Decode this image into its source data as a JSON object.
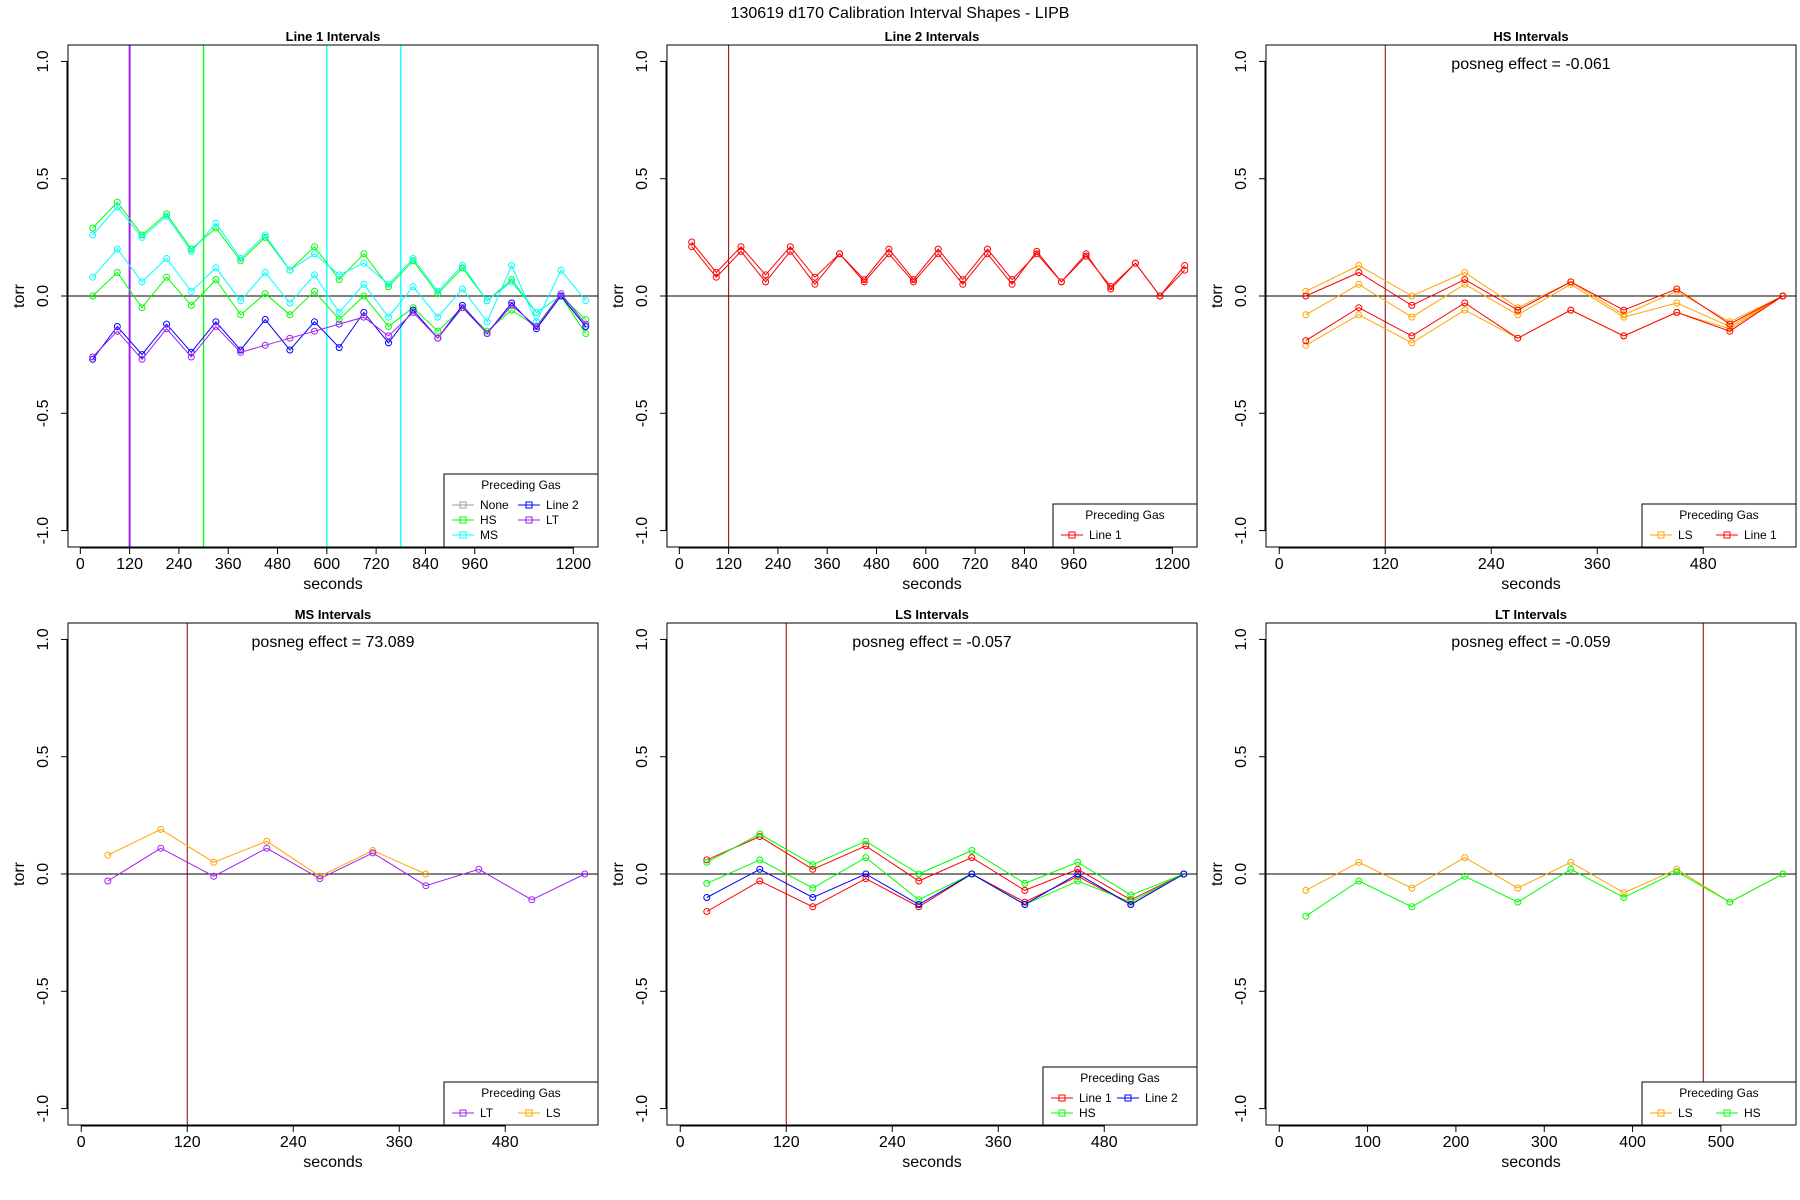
{
  "page_title": "130619   d170   Calibration Interval Shapes - LIPB",
  "colors": {
    "None": "#9e9e9e",
    "Line 1": "#ff0000",
    "Line 2": "#0000ff",
    "HS": "#00ff00",
    "MS": "#00ffff",
    "LS": "#ffa500",
    "LT": "#a020f0",
    "vline_dark": "#8b0000"
  },
  "chart_data": [
    {
      "type": "line",
      "title": "Line 1 Intervals",
      "xlabel": "seconds",
      "ylabel": "torr",
      "xlim": [
        -30,
        1260
      ],
      "ylim": [
        -1.07,
        1.07
      ],
      "xticks": [
        0,
        120,
        240,
        360,
        480,
        600,
        720,
        840,
        960,
        1200
      ],
      "yticks": [
        1.0,
        0.5,
        0.0,
        -0.5,
        -1.0
      ],
      "annotation": "",
      "vlines": [
        {
          "x": 120,
          "color": "LT",
          "width": 2
        },
        {
          "x": 300,
          "color": "HS",
          "width": 1.3
        },
        {
          "x": 600,
          "color": "MS",
          "width": 1.3
        },
        {
          "x": 780,
          "color": "MS",
          "width": 1.3
        }
      ],
      "legend": {
        "title": "Preceding Gas",
        "position": "bottom-right",
        "cols": 2,
        "entries": [
          "None",
          "HS",
          "MS",
          "Line 2",
          "LT"
        ]
      },
      "series": [
        {
          "name": "HS",
          "x": [
            30,
            90,
            150,
            210,
            270,
            330,
            390,
            450,
            510,
            570,
            630,
            690,
            750,
            810,
            870,
            930,
            990,
            1050,
            1110,
            1170,
            1230
          ],
          "y": [
            0.29,
            0.4,
            0.26,
            0.35,
            0.2,
            0.29,
            0.15,
            0.25,
            0.11,
            0.21,
            0.07,
            0.18,
            0.04,
            0.15,
            0.01,
            0.12,
            -0.02,
            0.07,
            -0.07,
            0.0,
            -0.1
          ]
        },
        {
          "name": "HS",
          "x": [
            30,
            90,
            150,
            210,
            270,
            330,
            390,
            450,
            510,
            570,
            630,
            690,
            750,
            810,
            870,
            930,
            990,
            1050,
            1110,
            1170,
            1230
          ],
          "y": [
            0.0,
            0.1,
            -0.05,
            0.08,
            -0.04,
            0.07,
            -0.08,
            0.01,
            -0.08,
            0.02,
            -0.1,
            0.0,
            -0.13,
            -0.05,
            -0.15,
            -0.05,
            -0.15,
            -0.06,
            -0.13,
            0.0,
            -0.16
          ]
        },
        {
          "name": "MS",
          "x": [
            30,
            90,
            150,
            210,
            270,
            330,
            390,
            450,
            510,
            570,
            630,
            690,
            750,
            810,
            870,
            930,
            990,
            1050,
            1110,
            1170,
            1230
          ],
          "y": [
            0.26,
            0.38,
            0.25,
            0.34,
            0.19,
            0.31,
            0.16,
            0.26,
            0.11,
            0.18,
            0.09,
            0.14,
            0.05,
            0.16,
            0.02,
            0.13,
            -0.02,
            0.06,
            -0.07,
            0.0,
            -0.13
          ]
        },
        {
          "name": "MS",
          "x": [
            30,
            90,
            150,
            210,
            270,
            330,
            390,
            450,
            510,
            570,
            630,
            690,
            750,
            810,
            870,
            930,
            990,
            1050,
            1110,
            1170,
            1230
          ],
          "y": [
            0.08,
            0.2,
            0.06,
            0.16,
            0.02,
            0.12,
            -0.02,
            0.1,
            -0.03,
            0.09,
            -0.07,
            0.05,
            -0.09,
            0.04,
            -0.09,
            0.03,
            -0.11,
            0.13,
            -0.11,
            0.11,
            -0.02
          ]
        },
        {
          "name": "Line 2",
          "x": [
            30,
            90,
            150,
            210,
            270,
            330,
            390,
            450,
            510,
            570,
            630,
            690,
            750,
            810,
            870,
            930,
            990,
            1050,
            1110,
            1170,
            1230
          ],
          "y": [
            -0.27,
            -0.13,
            -0.25,
            -0.12,
            -0.24,
            -0.11,
            -0.23,
            -0.1,
            -0.23,
            -0.11,
            -0.22,
            -0.07,
            -0.2,
            -0.06,
            -0.18,
            -0.04,
            -0.16,
            -0.03,
            -0.14,
            0.0,
            -0.13
          ]
        },
        {
          "name": "LT",
          "x": [
            30,
            90,
            150,
            210,
            270,
            330,
            390,
            450,
            510,
            570,
            630,
            690,
            750,
            810,
            870,
            930,
            990,
            1050,
            1110,
            1170,
            1230
          ],
          "y": [
            -0.26,
            -0.15,
            -0.27,
            -0.14,
            -0.26,
            -0.13,
            -0.24,
            -0.21,
            -0.18,
            -0.15,
            -0.12,
            -0.09,
            -0.17,
            -0.07,
            -0.18,
            -0.05,
            -0.16,
            -0.04,
            -0.13,
            0.01,
            -0.12
          ]
        }
      ]
    },
    {
      "type": "line",
      "title": "Line 2 Intervals",
      "xlabel": "seconds",
      "ylabel": "torr",
      "xlim": [
        -30,
        1260
      ],
      "ylim": [
        -1.07,
        1.07
      ],
      "xticks": [
        0,
        120,
        240,
        360,
        480,
        600,
        720,
        840,
        960,
        1200
      ],
      "yticks": [
        1.0,
        0.5,
        0.0,
        -0.5,
        -1.0
      ],
      "annotation": "",
      "vlines": [
        {
          "x": 120,
          "color": "vline_dark",
          "width": 1
        }
      ],
      "legend": {
        "title": "Preceding Gas",
        "position": "bottom-right",
        "cols": 1,
        "entries": [
          "Line 1"
        ]
      },
      "series": [
        {
          "name": "Line 1",
          "x": [
            30,
            90,
            150,
            210,
            270,
            330,
            390,
            450,
            510,
            570,
            630,
            690,
            750,
            810,
            870,
            930,
            990,
            1050,
            1110,
            1170,
            1230
          ],
          "y": [
            0.23,
            0.1,
            0.21,
            0.09,
            0.21,
            0.08,
            0.18,
            0.07,
            0.2,
            0.07,
            0.2,
            0.07,
            0.2,
            0.07,
            0.18,
            0.06,
            0.17,
            0.04,
            0.14,
            0.0,
            0.13
          ]
        },
        {
          "name": "Line 1",
          "x": [
            30,
            90,
            150,
            210,
            270,
            330,
            390,
            450,
            510,
            570,
            630,
            690,
            750,
            810,
            870,
            930,
            990,
            1050,
            1110,
            1170,
            1230
          ],
          "y": [
            0.21,
            0.08,
            0.19,
            0.06,
            0.19,
            0.05,
            0.18,
            0.06,
            0.18,
            0.06,
            0.18,
            0.05,
            0.18,
            0.05,
            0.19,
            0.06,
            0.18,
            0.03,
            0.14,
            0.0,
            0.11
          ]
        }
      ]
    },
    {
      "type": "line",
      "title": "HS Intervals",
      "xlabel": "seconds",
      "ylabel": "torr",
      "xlim": [
        -15,
        585
      ],
      "ylim": [
        -1.07,
        1.07
      ],
      "xticks": [
        0,
        120,
        240,
        360,
        480
      ],
      "yticks": [
        1.0,
        0.5,
        0.0,
        -0.5,
        -1.0
      ],
      "annotation": "posneg effect = -0.061",
      "vlines": [
        {
          "x": 120,
          "color": "vline_dark",
          "width": 1
        }
      ],
      "legend": {
        "title": "Preceding Gas",
        "position": "bottom-right",
        "cols": 2,
        "entries": [
          "LS",
          "Line 1"
        ]
      },
      "series": [
        {
          "name": "LS",
          "x": [
            30,
            90,
            150,
            210,
            270,
            330,
            390,
            450,
            510,
            570
          ],
          "y": [
            0.02,
            0.13,
            0.0,
            0.1,
            -0.05,
            0.06,
            -0.08,
            0.02,
            -0.11,
            0.0
          ]
        },
        {
          "name": "LS",
          "x": [
            30,
            90,
            150,
            210,
            270,
            330,
            390,
            450,
            510,
            570
          ],
          "y": [
            -0.08,
            0.05,
            -0.09,
            0.05,
            -0.08,
            0.05,
            -0.09,
            -0.03,
            -0.13,
            0.0
          ]
        },
        {
          "name": "LS",
          "x": [
            30,
            90,
            150,
            210,
            270,
            330,
            390,
            450,
            510,
            570
          ],
          "y": [
            -0.21,
            -0.08,
            -0.2,
            -0.06,
            -0.18,
            -0.06,
            -0.17,
            -0.07,
            -0.14,
            0.0
          ]
        },
        {
          "name": "Line 1",
          "x": [
            30,
            90,
            150,
            210,
            270,
            330,
            390,
            450,
            510,
            570
          ],
          "y": [
            0.0,
            0.1,
            -0.04,
            0.07,
            -0.06,
            0.06,
            -0.06,
            0.03,
            -0.12,
            0.0
          ]
        },
        {
          "name": "Line 1",
          "x": [
            30,
            90,
            150,
            210,
            270,
            330,
            390,
            450,
            510,
            570
          ],
          "y": [
            -0.19,
            -0.05,
            -0.17,
            -0.03,
            -0.18,
            -0.06,
            -0.17,
            -0.07,
            -0.15,
            0.0
          ]
        }
      ]
    },
    {
      "type": "line",
      "title": "MS Intervals",
      "xlabel": "seconds",
      "ylabel": "torr",
      "xlim": [
        -15,
        585
      ],
      "ylim": [
        -1.07,
        1.07
      ],
      "xticks": [
        0,
        120,
        240,
        360,
        480
      ],
      "yticks": [
        1.0,
        0.5,
        0.0,
        -0.5,
        -1.0
      ],
      "annotation": "posneg effect = 73.089",
      "vlines": [
        {
          "x": 120,
          "color": "vline_dark",
          "width": 1
        }
      ],
      "legend": {
        "title": "Preceding Gas",
        "position": "bottom-right",
        "cols": 2,
        "entries": [
          "LT",
          "LS"
        ]
      },
      "series": [
        {
          "name": "LS",
          "x": [
            30,
            90,
            150,
            210,
            270,
            330,
            390
          ],
          "y": [
            0.08,
            0.19,
            0.05,
            0.14,
            -0.01,
            0.1,
            0.0
          ]
        },
        {
          "name": "LT",
          "x": [
            30,
            90,
            150,
            210,
            270,
            330,
            390,
            450,
            510,
            570
          ],
          "y": [
            -0.03,
            0.11,
            -0.01,
            0.11,
            -0.02,
            0.09,
            -0.05,
            0.02,
            -0.11,
            0.0
          ]
        }
      ]
    },
    {
      "type": "line",
      "title": "LS Intervals",
      "xlabel": "seconds",
      "ylabel": "torr",
      "xlim": [
        -15,
        585
      ],
      "ylim": [
        -1.07,
        1.07
      ],
      "xticks": [
        0,
        120,
        240,
        360,
        480
      ],
      "yticks": [
        1.0,
        0.5,
        0.0,
        -0.5,
        -1.0
      ],
      "annotation": "posneg effect = -0.057",
      "vlines": [
        {
          "x": 120,
          "color": "vline_dark",
          "width": 1
        }
      ],
      "legend": {
        "title": "Preceding Gas",
        "position": "bottom-right",
        "cols": 2,
        "entries": [
          "Line 1",
          "HS",
          "Line 2"
        ]
      },
      "series": [
        {
          "name": "Line 1",
          "x": [
            30,
            90,
            150,
            210,
            270,
            330,
            390,
            450,
            510,
            570
          ],
          "y": [
            0.06,
            0.16,
            0.02,
            0.12,
            -0.03,
            0.07,
            -0.07,
            0.02,
            -0.11,
            0.0
          ]
        },
        {
          "name": "Line 1",
          "x": [
            30,
            90,
            150,
            210,
            270,
            330,
            390,
            450,
            510,
            570
          ],
          "y": [
            -0.16,
            -0.03,
            -0.14,
            -0.02,
            -0.14,
            0.0,
            -0.12,
            -0.01,
            -0.13,
            0.0
          ]
        },
        {
          "name": "HS",
          "x": [
            30,
            90,
            150,
            210,
            270,
            330,
            390,
            450,
            510,
            570
          ],
          "y": [
            0.05,
            0.17,
            0.04,
            0.14,
            0.0,
            0.1,
            -0.04,
            0.05,
            -0.09,
            0.0
          ]
        },
        {
          "name": "HS",
          "x": [
            30,
            90,
            150,
            210,
            270,
            330,
            390,
            450,
            510,
            570
          ],
          "y": [
            -0.04,
            0.06,
            -0.06,
            0.07,
            -0.11,
            0.0,
            -0.13,
            -0.03,
            -0.12,
            0.0
          ]
        },
        {
          "name": "Line 2",
          "x": [
            30,
            90,
            150,
            210,
            270,
            330,
            390,
            450,
            510,
            570
          ],
          "y": [
            -0.1,
            0.02,
            -0.1,
            0.0,
            -0.13,
            0.0,
            -0.13,
            0.0,
            -0.13,
            0.0
          ]
        }
      ]
    },
    {
      "type": "line",
      "title": "LT Intervals",
      "xlabel": "seconds",
      "ylabel": "torr",
      "xlim": [
        -15,
        585
      ],
      "ylim": [
        -1.07,
        1.07
      ],
      "xticks": [
        0,
        100,
        200,
        300,
        400,
        500
      ],
      "yticks": [
        1.0,
        0.5,
        0.0,
        -0.5,
        -1.0
      ],
      "annotation": "posneg effect = -0.059",
      "vlines": [
        {
          "x": 480,
          "color": "vline_dark",
          "width": 1
        }
      ],
      "legend": {
        "title": "Preceding Gas",
        "position": "bottom-right",
        "cols": 2,
        "entries": [
          "LS",
          "HS"
        ]
      },
      "series": [
        {
          "name": "LS",
          "x": [
            30,
            90,
            150,
            210,
            270,
            330,
            390,
            450,
            510,
            570
          ],
          "y": [
            -0.07,
            0.05,
            -0.06,
            0.07,
            -0.06,
            0.05,
            -0.08,
            0.02,
            -0.12,
            0.0
          ]
        },
        {
          "name": "HS",
          "x": [
            30,
            90,
            150,
            210,
            270,
            330,
            390,
            450,
            510,
            570
          ],
          "y": [
            -0.18,
            -0.03,
            -0.14,
            -0.01,
            -0.12,
            0.02,
            -0.1,
            0.01,
            -0.12,
            0.0
          ]
        }
      ]
    }
  ]
}
